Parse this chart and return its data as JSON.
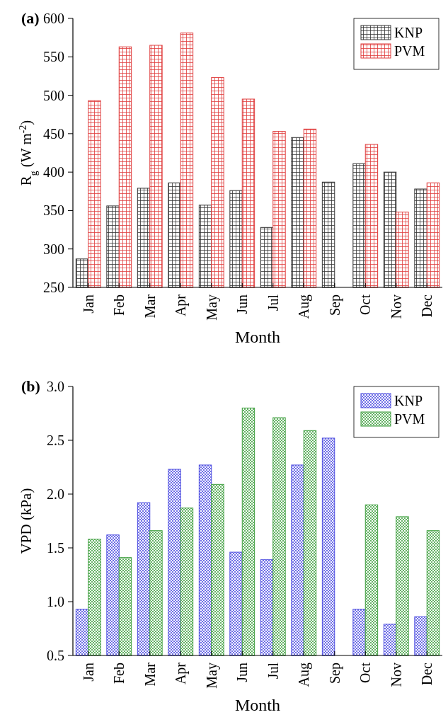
{
  "chart_data": [
    {
      "type": "bar",
      "title": "(a)",
      "xlabel": "Month",
      "ylabel": "R$_{g}$ (W m$^{-2}$)",
      "categories": [
        "Jan",
        "Feb",
        "Mar",
        "Apr",
        "May",
        "Jun",
        "Jul",
        "Aug",
        "Sep",
        "Oct",
        "Nov",
        "Dec"
      ],
      "series": [
        {
          "name": "KNP",
          "color": "#333333",
          "values": [
            287,
            356,
            379,
            386,
            357,
            376,
            328,
            445,
            387,
            411,
            400,
            378
          ]
        },
        {
          "name": "PVM",
          "color": "#e03c3c",
          "values": [
            493,
            563,
            565,
            581,
            523,
            495,
            453,
            456,
            null,
            436,
            348,
            386
          ]
        }
      ],
      "ylim": [
        250,
        600
      ],
      "yticks": [
        250,
        300,
        350,
        400,
        450,
        500,
        550,
        600
      ],
      "grid": false,
      "legend": "top right"
    },
    {
      "type": "bar",
      "title": "(b)",
      "xlabel": "Month",
      "ylabel": "VPD (kPa)",
      "categories": [
        "Jan",
        "Feb",
        "Mar",
        "Apr",
        "May",
        "Jun",
        "Jul",
        "Aug",
        "Sep",
        "Oct",
        "Nov",
        "Dec"
      ],
      "series": [
        {
          "name": "KNP",
          "color": "#4a4ae0",
          "values": [
            0.93,
            1.62,
            1.92,
            2.23,
            2.27,
            1.46,
            1.39,
            2.27,
            2.52,
            0.93,
            0.79,
            0.86
          ]
        },
        {
          "name": "PVM",
          "color": "#3f9f3f",
          "values": [
            1.58,
            1.41,
            1.66,
            1.87,
            2.09,
            2.8,
            2.71,
            2.59,
            null,
            1.9,
            1.79,
            1.66
          ]
        }
      ],
      "ylim": [
        0.5,
        3.0
      ],
      "yticks": [
        {
          "value": 0.5,
          "label": "0.5"
        },
        {
          "value": 1.0,
          "label": "1.0"
        },
        {
          "value": 1.5,
          "label": "1.5"
        },
        {
          "value": 2.0,
          "label": "2.0"
        },
        {
          "value": 2.5,
          "label": "2.5"
        },
        {
          "value": 3.0,
          "label": "3.0"
        }
      ],
      "grid": false,
      "legend": "top right"
    }
  ]
}
